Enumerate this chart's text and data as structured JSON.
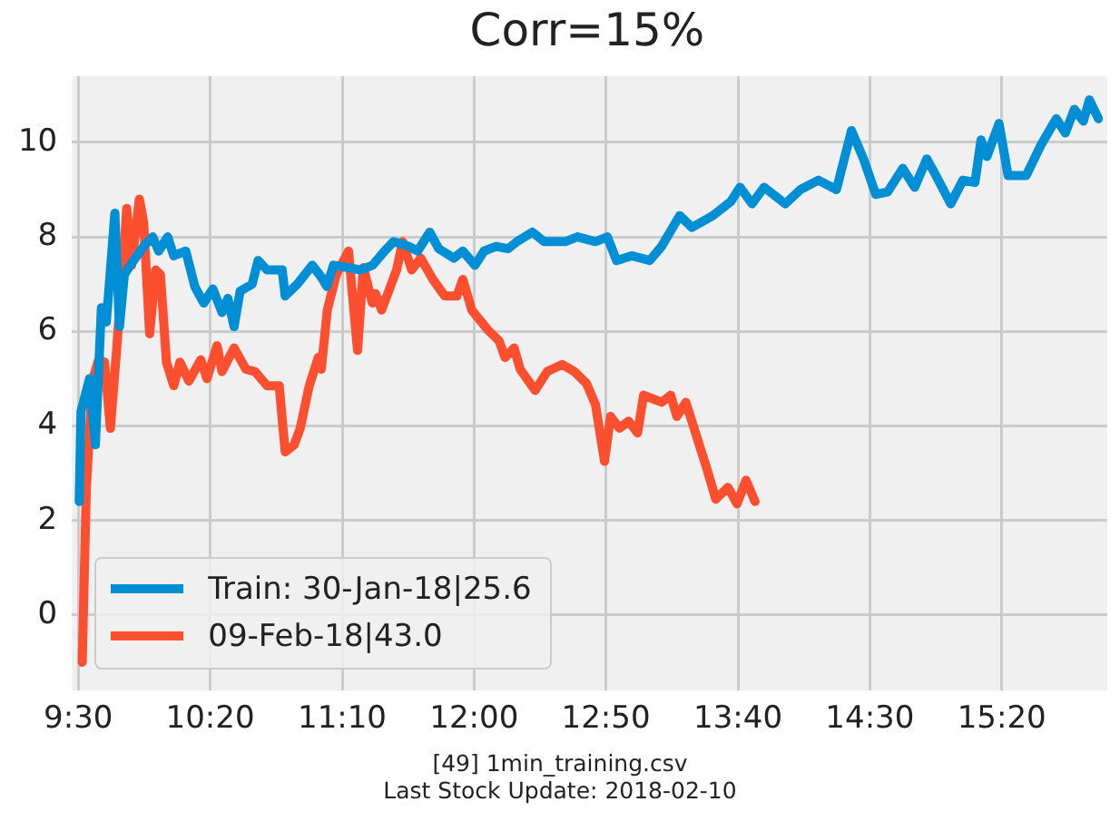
{
  "chart_data": {
    "type": "line",
    "title": "Corr=15%",
    "annotations": [
      "[49] 1min_training.csv",
      "Last Stock Update: 2018-02-10"
    ],
    "xlim": [
      9.46,
      16.0
    ],
    "ylim": [
      -1.6,
      11.4
    ],
    "xticks": [
      {
        "value": 9.5,
        "label": "9:30"
      },
      {
        "value": 10.333,
        "label": "10:20"
      },
      {
        "value": 11.167,
        "label": "11:10"
      },
      {
        "value": 12.0,
        "label": "12:00"
      },
      {
        "value": 12.833,
        "label": "12:50"
      },
      {
        "value": 13.667,
        "label": "13:40"
      },
      {
        "value": 14.5,
        "label": "14:30"
      },
      {
        "value": 15.333,
        "label": "15:20"
      }
    ],
    "yticks": [
      0,
      2,
      4,
      6,
      8,
      10
    ],
    "grid": true,
    "legend": "bottom left",
    "marker": "none",
    "line_style": "solid",
    "series": [
      {
        "name": "Train: 30-Jan-18|25.6",
        "color": "#008fd5",
        "x": [
          9.506,
          9.517,
          9.571,
          9.608,
          9.646,
          9.677,
          9.703,
          9.731,
          9.76,
          9.791,
          9.829,
          9.913,
          9.97,
          10.008,
          10.065,
          10.103,
          10.179,
          10.236,
          10.293,
          10.35,
          10.408,
          10.445,
          10.484,
          10.522,
          10.598,
          10.636,
          10.693,
          10.788,
          10.807,
          10.884,
          10.978,
          11.035,
          11.07,
          11.112,
          11.207,
          11.283,
          11.359,
          11.435,
          11.492,
          11.587,
          11.644,
          11.72,
          11.777,
          11.872,
          11.929,
          12.006,
          12.063,
          12.139,
          12.215,
          12.272,
          12.368,
          12.443,
          12.576,
          12.653,
          12.767,
          12.842,
          12.9,
          12.995,
          13.11,
          13.185,
          13.299,
          13.376,
          13.509,
          13.623,
          13.68,
          13.756,
          13.832,
          13.966,
          14.061,
          14.175,
          14.289,
          14.384,
          14.46,
          14.537,
          14.612,
          14.708,
          14.783,
          14.86,
          14.917,
          15.011,
          15.088,
          15.164,
          15.202,
          15.24,
          15.316,
          15.373,
          15.488,
          15.582,
          15.678,
          15.735,
          15.792,
          15.849,
          15.887,
          15.944
        ],
        "values": [
          2.4,
          4.3,
          5.0,
          3.6,
          6.5,
          6.2,
          7.3,
          8.5,
          6.1,
          7.2,
          7.4,
          7.8,
          8.0,
          7.7,
          8.0,
          7.6,
          7.7,
          6.95,
          6.6,
          6.9,
          6.4,
          6.7,
          6.1,
          6.85,
          7.0,
          7.5,
          7.3,
          7.3,
          6.75,
          7.0,
          7.4,
          7.15,
          6.95,
          7.4,
          7.35,
          7.3,
          7.4,
          7.7,
          7.9,
          7.8,
          7.7,
          8.1,
          7.75,
          7.55,
          7.7,
          7.4,
          7.7,
          7.8,
          7.75,
          7.9,
          8.1,
          7.9,
          7.9,
          8.0,
          7.9,
          8.0,
          7.5,
          7.6,
          7.5,
          7.8,
          8.45,
          8.2,
          8.45,
          8.75,
          9.05,
          8.7,
          9.05,
          8.7,
          9.0,
          9.2,
          9.0,
          10.25,
          9.65,
          8.9,
          8.95,
          9.45,
          9.05,
          9.65,
          9.3,
          8.7,
          9.2,
          9.15,
          10.05,
          9.7,
          10.4,
          9.3,
          9.3,
          9.95,
          10.5,
          10.2,
          10.7,
          10.45,
          10.9,
          10.5
        ]
      },
      {
        "name": "09-Feb-18|43.0",
        "color": "#fc4f30",
        "x": [
          9.525,
          9.551,
          9.589,
          9.628,
          9.666,
          9.703,
          9.742,
          9.78,
          9.806,
          9.837,
          9.886,
          9.913,
          9.951,
          9.989,
          10.019,
          10.057,
          10.103,
          10.142,
          10.199,
          10.274,
          10.313,
          10.377,
          10.408,
          10.484,
          10.559,
          10.616,
          10.693,
          10.769,
          10.807,
          10.864,
          10.902,
          10.959,
          11.016,
          11.035,
          11.073,
          11.13,
          11.207,
          11.264,
          11.301,
          11.358,
          11.378,
          11.416,
          11.511,
          11.549,
          11.606,
          11.663,
          11.74,
          11.815,
          11.892,
          11.929,
          11.986,
          12.082,
          12.158,
          12.196,
          12.253,
          12.291,
          12.386,
          12.462,
          12.557,
          12.634,
          12.71,
          12.767,
          12.824,
          12.862,
          12.919,
          12.976,
          13.033,
          13.071,
          13.185,
          13.242,
          13.281,
          13.338,
          13.413,
          13.47,
          13.527,
          13.604,
          13.661,
          13.718,
          13.775
        ],
        "values": [
          -1.0,
          2.7,
          4.95,
          5.4,
          5.35,
          3.95,
          5.6,
          7.3,
          8.6,
          7.4,
          8.8,
          8.3,
          5.95,
          7.3,
          7.2,
          5.35,
          4.85,
          5.35,
          4.95,
          5.4,
          5.0,
          5.7,
          5.15,
          5.65,
          5.2,
          5.15,
          4.85,
          4.85,
          3.45,
          3.6,
          3.95,
          4.85,
          5.45,
          5.2,
          6.45,
          7.2,
          7.7,
          5.6,
          7.35,
          6.6,
          6.8,
          6.45,
          7.3,
          7.9,
          7.3,
          7.55,
          7.1,
          6.75,
          6.75,
          7.1,
          6.45,
          6.05,
          5.8,
          5.45,
          5.65,
          5.2,
          4.75,
          5.15,
          5.3,
          5.15,
          4.9,
          4.45,
          3.25,
          4.2,
          3.95,
          4.1,
          3.85,
          4.65,
          4.5,
          4.65,
          4.2,
          4.5,
          3.7,
          3.1,
          2.45,
          2.7,
          2.35,
          2.85,
          2.4
        ]
      }
    ]
  }
}
